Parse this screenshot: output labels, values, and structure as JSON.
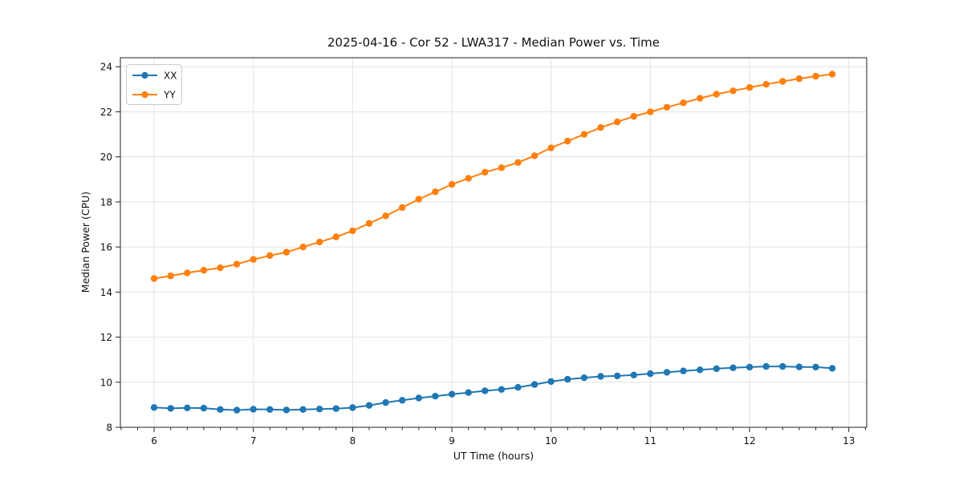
{
  "chart_data": {
    "type": "line",
    "title": "2025-04-16 - Cor 52 - LWA317 - Median Power vs. Time",
    "xlabel": "UT Time (hours)",
    "ylabel": "Median Power (CPU)",
    "xlim": [
      5.66,
      13.18
    ],
    "ylim": [
      8.0,
      24.4
    ],
    "xticks": [
      6,
      7,
      8,
      9,
      10,
      11,
      12,
      13
    ],
    "yticks": [
      8,
      10,
      12,
      14,
      16,
      18,
      20,
      22,
      24
    ],
    "x_minor_tick_step": 0.16667,
    "grid": true,
    "grid_color": "#e3e3e3",
    "legend_position": "upper-left",
    "marker": "circle",
    "x": [
      6.0,
      6.1667,
      6.3333,
      6.5,
      6.6667,
      6.8333,
      7.0,
      7.1667,
      7.3333,
      7.5,
      7.6667,
      7.8333,
      8.0,
      8.1667,
      8.3333,
      8.5,
      8.6667,
      8.8333,
      9.0,
      9.1667,
      9.3333,
      9.5,
      9.6667,
      9.8333,
      10.0,
      10.1667,
      10.3333,
      10.5,
      10.6667,
      10.8333,
      11.0,
      11.1667,
      11.3333,
      11.5,
      11.6667,
      11.8333,
      12.0,
      12.1667,
      12.3333,
      12.5,
      12.6667,
      12.8333
    ],
    "series": [
      {
        "name": "XX",
        "color": "#1f77b4",
        "values": [
          8.88,
          8.84,
          8.86,
          8.85,
          8.79,
          8.76,
          8.8,
          8.79,
          8.77,
          8.79,
          8.81,
          8.83,
          8.87,
          8.97,
          9.1,
          9.2,
          9.3,
          9.38,
          9.47,
          9.54,
          9.62,
          9.68,
          9.77,
          9.9,
          10.03,
          10.13,
          10.2,
          10.26,
          10.28,
          10.32,
          10.38,
          10.44,
          10.5,
          10.55,
          10.6,
          10.64,
          10.67,
          10.7,
          10.7,
          10.68,
          10.67,
          10.62
        ]
      },
      {
        "name": "YY",
        "color": "#ff7f0e",
        "values": [
          14.6,
          14.72,
          14.85,
          14.97,
          15.08,
          15.24,
          15.45,
          15.62,
          15.77,
          16.0,
          16.22,
          16.45,
          16.72,
          17.05,
          17.38,
          17.75,
          18.12,
          18.45,
          18.78,
          19.05,
          19.32,
          19.52,
          19.75,
          20.05,
          20.4,
          20.7,
          21.0,
          21.3,
          21.55,
          21.8,
          22.0,
          22.2,
          22.4,
          22.6,
          22.78,
          22.93,
          23.08,
          23.22,
          23.35,
          23.47,
          23.58,
          23.67
        ]
      }
    ]
  }
}
